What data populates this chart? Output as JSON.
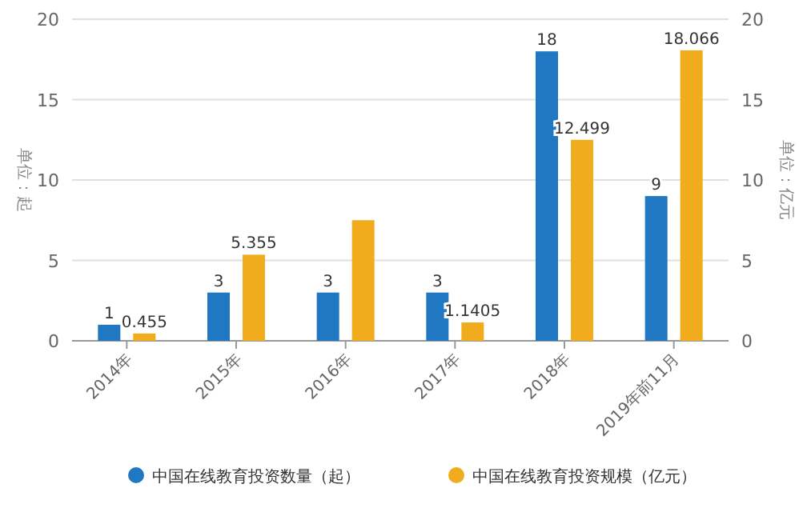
{
  "chart_data": {
    "type": "bar",
    "ylabel": "单位：起",
    "y2label": "单位：亿元",
    "categories": [
      "2014年",
      "2015年",
      "2016年",
      "2017年",
      "2018年",
      "2019年前11月"
    ],
    "series": [
      {
        "name": "中国在线教育投资数量（起）",
        "color": "#1f78c1",
        "values": [
          1,
          3,
          3,
          3,
          18,
          9
        ],
        "value_labels": [
          "1",
          "3",
          "3",
          "3",
          "18",
          "9"
        ]
      },
      {
        "name": "中国在线教育投资规模（亿元）",
        "color": "#f0ac1c",
        "axis": "y2",
        "values": [
          0.455,
          5.355,
          7.5,
          1.1405,
          12.499,
          18.066
        ],
        "value_labels": [
          "0.455",
          "5.355",
          null,
          "1.1405",
          "12.499",
          "18.066"
        ]
      }
    ],
    "ylim": [
      0,
      20
    ],
    "yticks": [
      0,
      5,
      10,
      15,
      20
    ],
    "y2lim": [
      0,
      20
    ],
    "y2ticks": [
      0,
      5,
      10,
      15,
      20
    ],
    "grid": "y",
    "legend": "bottom"
  }
}
